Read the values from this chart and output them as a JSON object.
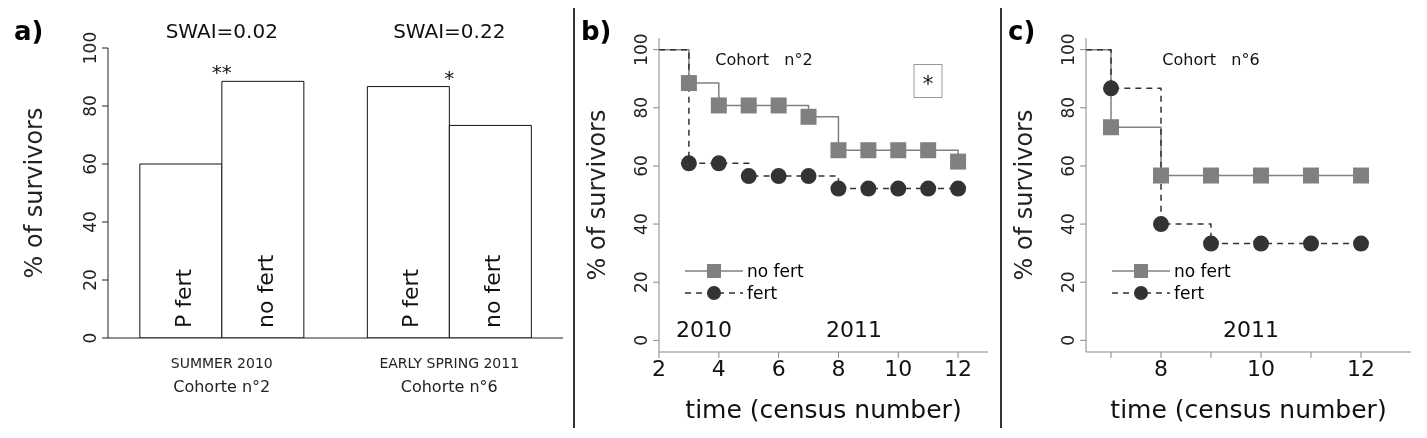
{
  "chart_data": [
    {
      "type": "bar",
      "title": "a)",
      "ylabel": "% of survivors",
      "categories": [
        "SUMMER 2010\nCohorte n°2",
        "EARLY SPRING 2011\nCohorte n°6"
      ],
      "series": [
        {
          "name": "P fert",
          "color": "#ffffff",
          "values": [
            60,
            86.7
          ]
        },
        {
          "name": "no fert",
          "color": "#ffffff",
          "values": [
            88.5,
            73.3
          ]
        }
      ],
      "ylim": [
        0,
        100
      ],
      "yticks": [
        0,
        20,
        40,
        60,
        80,
        100
      ],
      "grid": false,
      "legend": false,
      "annotations": [
        "SWAI=0.02",
        "**",
        "SWAI=0.22",
        "*"
      ]
    },
    {
      "type": "step",
      "title": "b)",
      "xlabel": "time (census number)",
      "ylabel": "% of survivors",
      "series": [
        {
          "name": "no fert",
          "color": "#808080",
          "marker": "square",
          "line_style": "solid",
          "x": [
            2,
            3,
            4,
            5,
            6,
            7,
            8,
            9,
            10,
            11,
            12
          ],
          "values": [
            100,
            88.5,
            80.8,
            80.8,
            80.8,
            76.9,
            65.4,
            65.4,
            65.4,
            65.4,
            61.5
          ]
        },
        {
          "name": "fert",
          "color": "#333333",
          "marker": "circle",
          "line_style": "dashed",
          "x": [
            2,
            3,
            4,
            5,
            6,
            7,
            8,
            9,
            10,
            11,
            12
          ],
          "values": [
            100,
            60.9,
            60.9,
            56.5,
            56.5,
            56.5,
            52.2,
            52.2,
            52.2,
            52.2,
            52.2
          ]
        }
      ],
      "xlim": [
        2,
        13
      ],
      "xticks": [
        2,
        4,
        6,
        8,
        10,
        12
      ],
      "ylim": [
        -4,
        104
      ],
      "yticks": [
        0,
        20,
        40,
        60,
        80,
        100
      ],
      "grid": false,
      "legend": "left",
      "annotations": [
        "Cohort   n°2",
        "*",
        "2010",
        "2011"
      ]
    },
    {
      "type": "step",
      "title": "c)",
      "xlabel": "time (census number)",
      "ylabel": "% of survivors",
      "series": [
        {
          "name": "no fert",
          "color": "#808080",
          "marker": "square",
          "line_style": "solid",
          "x": [
            6.5,
            7,
            8,
            9,
            10,
            11,
            12
          ],
          "values": [
            100,
            73.3,
            56.7,
            56.7,
            56.7,
            56.7,
            56.7
          ]
        },
        {
          "name": "fert",
          "color": "#333333",
          "marker": "circle",
          "line_style": "dashed",
          "x": [
            6.5,
            7,
            8,
            9,
            10,
            11,
            12
          ],
          "values": [
            100,
            86.7,
            40,
            33.3,
            33.3,
            33.3,
            33.3
          ]
        }
      ],
      "xlim": [
        6.5,
        13
      ],
      "xticks": [
        {
          "value": 7,
          "label": null
        },
        8,
        {
          "value": 9,
          "label": null
        },
        10,
        {
          "value": 11,
          "label": null
        },
        12
      ],
      "ylim": [
        -4,
        104
      ],
      "yticks": [
        0,
        20,
        40,
        60,
        80,
        100
      ],
      "grid": false,
      "legend": "left",
      "annotations": [
        "Cohort   n°6",
        "2011"
      ]
    }
  ]
}
